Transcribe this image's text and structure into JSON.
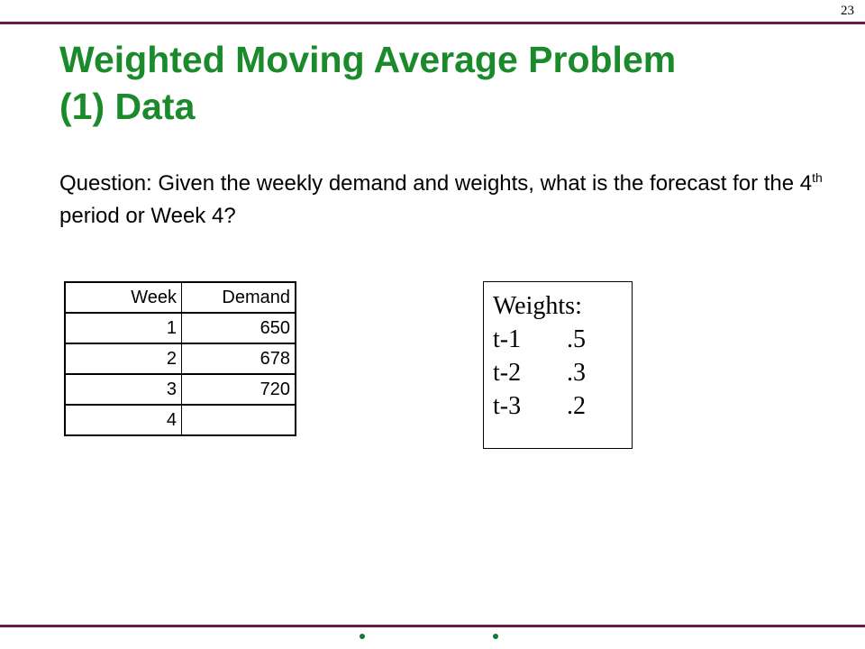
{
  "page_number": "23",
  "title_line1": "Weighted Moving Average Problem",
  "title_line2": "(1) Data",
  "question": {
    "part1": "Question: Given the weekly demand and weights, what is the forecast for the 4",
    "superscript": "th",
    "part2": " period or Week 4?"
  },
  "table": {
    "headers": [
      "Week",
      "Demand"
    ],
    "rows": [
      [
        "1",
        "650"
      ],
      [
        "2",
        "678"
      ],
      [
        "3",
        "720"
      ],
      [
        "4",
        ""
      ]
    ]
  },
  "weights": {
    "heading": "Weights:",
    "items": [
      {
        "label": "t-1",
        "value": ".5"
      },
      {
        "label": "t-2",
        "value": ".3"
      },
      {
        "label": "t-3",
        "value": ".2"
      }
    ]
  },
  "colors": {
    "title": "#1a8a2a",
    "rule": "#6b1a4a",
    "dots": "#0e7a3a"
  }
}
